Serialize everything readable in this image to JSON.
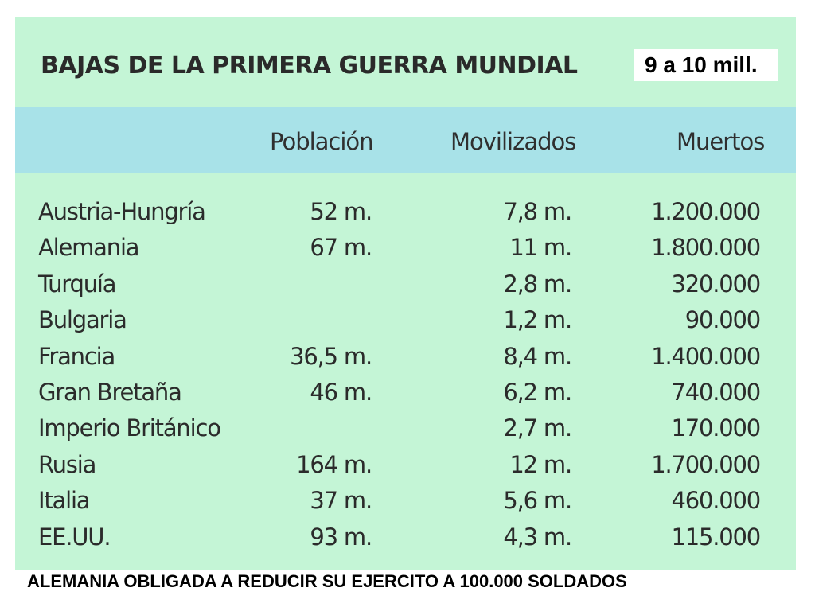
{
  "title": "BAJAS DE LA PRIMERA GUERRA MUNDIAL",
  "total_note": "9 a 10 mill.",
  "columns": {
    "country": "",
    "population": "Población",
    "mobilized": "Movilizados",
    "dead": "Muertos"
  },
  "rows": [
    {
      "country": "Austria-Hungría",
      "population": "52 m.",
      "mobilized": "7,8 m.",
      "dead": "1.200.000"
    },
    {
      "country": "Alemania",
      "population": "67 m.",
      "mobilized": "11 m.",
      "dead": "1.800.000"
    },
    {
      "country": "Turquía",
      "population": "",
      "mobilized": "2,8 m.",
      "dead": "320.000"
    },
    {
      "country": "Bulgaria",
      "population": "",
      "mobilized": "1,2 m.",
      "dead": "90.000"
    },
    {
      "country": "Francia",
      "population": "36,5 m.",
      "mobilized": "8,4 m.",
      "dead": "1.400.000"
    },
    {
      "country": "Gran Bretaña",
      "population": "46 m.",
      "mobilized": "6,2 m.",
      "dead": "740.000"
    },
    {
      "country": "Imperio Británico",
      "population": "",
      "mobilized": "2,7 m.",
      "dead": "170.000"
    },
    {
      "country": "Rusia",
      "population": "164 m.",
      "mobilized": "12 m.",
      "dead": "1.700.000"
    },
    {
      "country": "Italia",
      "population": "37 m.",
      "mobilized": "5,6 m.",
      "dead": "460.000"
    },
    {
      "country": "EE.UU.",
      "population": "93 m.",
      "mobilized": "4,3 m.",
      "dead": "115.000"
    }
  ],
  "footer": "ALEMANIA OBLIGADA A REDUCIR SU EJERCITO A 100.000 SOLDADOS",
  "colors": {
    "table_background": "#c4f5d6",
    "header_band": "#a8e2e8",
    "text": "#2b2b2b"
  }
}
